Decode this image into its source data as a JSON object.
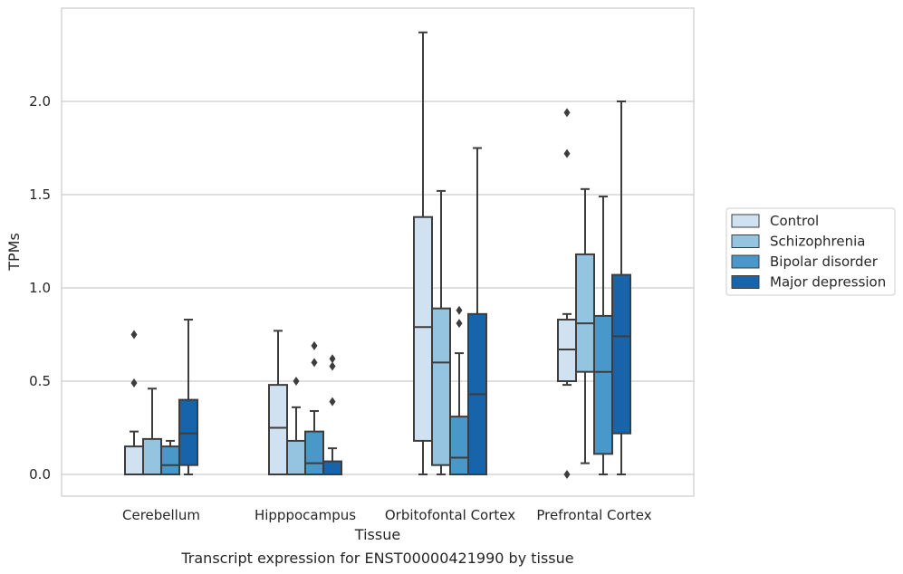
{
  "chart_data": {
    "type": "box",
    "xlabel": "Tissue",
    "ylabel": "TPMs",
    "caption": "Transcript expression for ENST00000421990 by tissue",
    "ylim": [
      -0.12,
      2.5
    ],
    "yticks": [
      "0.0",
      "0.5",
      "1.0",
      "1.5",
      "2.0"
    ],
    "ytick_values": [
      0,
      0.5,
      1.0,
      1.5,
      2.0
    ],
    "grid": "horizontal",
    "legend_position": "right",
    "categories": [
      "Cerebellum",
      "Hipppocampus",
      "Orbitofontal Cortex",
      "Prefrontal Cortex"
    ],
    "series": [
      {
        "name": "Control",
        "color": "#d0e1f2",
        "boxes": [
          {
            "whislo": 0.0,
            "q1": 0.0,
            "med": 0.0,
            "q3": 0.15,
            "whishi": 0.23,
            "fliers": [
              0.75,
              0.49
            ]
          },
          {
            "whislo": 0.0,
            "q1": 0.0,
            "med": 0.25,
            "q3": 0.48,
            "whishi": 0.77,
            "fliers": []
          },
          {
            "whislo": 0.0,
            "q1": 0.18,
            "med": 0.79,
            "q3": 1.38,
            "whishi": 2.37,
            "fliers": []
          },
          {
            "whislo": 0.48,
            "q1": 0.5,
            "med": 0.67,
            "q3": 0.83,
            "whishi": 0.86,
            "fliers": [
              1.94,
              1.72,
              0.0
            ]
          }
        ]
      },
      {
        "name": "Schizophrenia",
        "color": "#94c4df",
        "boxes": [
          {
            "whislo": 0.0,
            "q1": 0.0,
            "med": 0.0,
            "q3": 0.19,
            "whishi": 0.46,
            "fliers": []
          },
          {
            "whislo": 0.0,
            "q1": 0.0,
            "med": 0.0,
            "q3": 0.18,
            "whishi": 0.36,
            "fliers": [
              0.5
            ]
          },
          {
            "whislo": 0.0,
            "q1": 0.05,
            "med": 0.6,
            "q3": 0.89,
            "whishi": 1.52,
            "fliers": []
          },
          {
            "whislo": 0.06,
            "q1": 0.55,
            "med": 0.81,
            "q3": 1.18,
            "whishi": 1.53,
            "fliers": []
          }
        ]
      },
      {
        "name": "Bipolar disorder",
        "color": "#4a98c9",
        "boxes": [
          {
            "whislo": 0.0,
            "q1": 0.0,
            "med": 0.05,
            "q3": 0.15,
            "whishi": 0.18,
            "fliers": []
          },
          {
            "whislo": 0.0,
            "q1": 0.0,
            "med": 0.06,
            "q3": 0.23,
            "whishi": 0.34,
            "fliers": [
              0.69,
              0.6
            ]
          },
          {
            "whislo": 0.0,
            "q1": 0.0,
            "med": 0.09,
            "q3": 0.31,
            "whishi": 0.65,
            "fliers": [
              0.88,
              0.81
            ]
          },
          {
            "whislo": 0.0,
            "q1": 0.11,
            "med": 0.55,
            "q3": 0.85,
            "whishi": 1.49,
            "fliers": []
          }
        ]
      },
      {
        "name": "Major depression",
        "color": "#1764ab",
        "boxes": [
          {
            "whislo": 0.0,
            "q1": 0.05,
            "med": 0.22,
            "q3": 0.4,
            "whishi": 0.83,
            "fliers": []
          },
          {
            "whislo": 0.0,
            "q1": 0.0,
            "med": 0.0,
            "q3": 0.07,
            "whishi": 0.14,
            "fliers": [
              0.62,
              0.58,
              0.39
            ]
          },
          {
            "whislo": 0.0,
            "q1": 0.0,
            "med": 0.43,
            "q3": 0.86,
            "whishi": 1.75,
            "fliers": []
          },
          {
            "whislo": 0.0,
            "q1": 0.22,
            "med": 0.74,
            "q3": 1.07,
            "whishi": 2.0,
            "fliers": []
          }
        ]
      }
    ]
  }
}
